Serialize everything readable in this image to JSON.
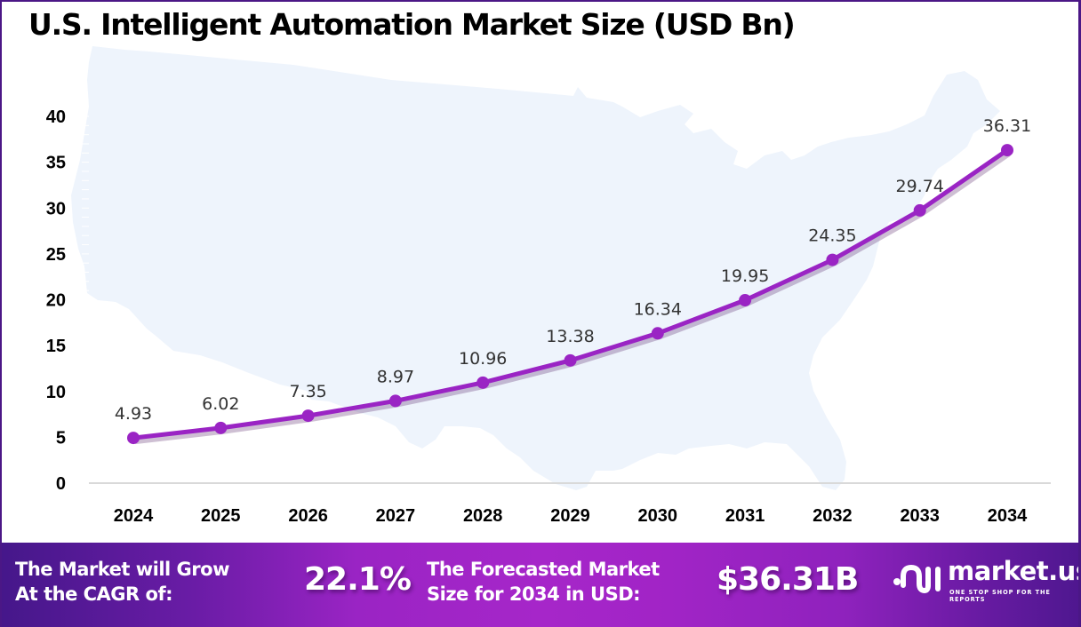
{
  "title": "U.S. Intelligent Automation Market Size (USD Bn)",
  "colors": {
    "line": "#9a24c4",
    "marker": "#9a24c4",
    "axis": "#d9d9d9",
    "map": "#eef4fc",
    "frame": "#4b1786"
  },
  "chart_data": {
    "type": "line",
    "title": "U.S. Intelligent Automation Market Size (USD Bn)",
    "xlabel": "",
    "ylabel": "",
    "categories": [
      "2024",
      "2025",
      "2026",
      "2027",
      "2028",
      "2029",
      "2030",
      "2031",
      "2032",
      "2033",
      "2034"
    ],
    "series": [
      {
        "name": "Market Size (USD Bn)",
        "values": [
          4.93,
          6.02,
          7.35,
          8.97,
          10.96,
          13.38,
          16.34,
          19.95,
          24.35,
          29.74,
          36.31
        ],
        "labels": [
          "4.93",
          "6.02",
          "7.35",
          "8.97",
          "10.96",
          "13.38",
          "16.34",
          "19.95",
          "24.35",
          "29.74",
          "36.31"
        ]
      }
    ],
    "ylim": [
      0,
      40
    ],
    "yticks": [
      "0",
      "5",
      "10",
      "15",
      "20",
      "25",
      "30",
      "35",
      "40"
    ],
    "ytick_values": [
      0,
      5,
      10,
      15,
      20,
      25,
      30,
      35,
      40
    ],
    "grid": false,
    "legend": "none",
    "background_image": "U.S. map silhouette"
  },
  "banner": {
    "cagr_label_line1": "The Market will Grow",
    "cagr_label_line2": "At the CAGR of:",
    "cagr_value": "22.1%",
    "forecast_label_line1": "The Forecasted Market",
    "forecast_label_line2": "Size for 2034 in USD:",
    "forecast_value": "$36.31B"
  },
  "logo": {
    "name": "market.us",
    "tagline": "ONE STOP SHOP FOR THE REPORTS",
    "icon": "market-us-logo-icon"
  }
}
